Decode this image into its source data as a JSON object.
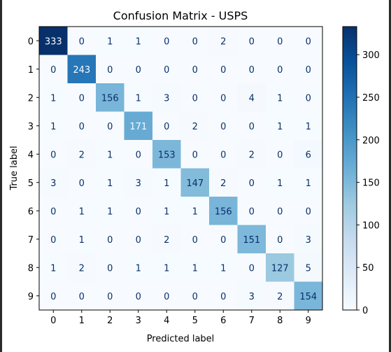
{
  "chart_data": {
    "type": "heatmap",
    "title": "Confusion Matrix - USPS",
    "xlabel": "Predicted label",
    "ylabel": "True label",
    "x_categories": [
      "0",
      "1",
      "2",
      "3",
      "4",
      "5",
      "6",
      "7",
      "8",
      "9"
    ],
    "y_categories": [
      "0",
      "1",
      "2",
      "3",
      "4",
      "5",
      "6",
      "7",
      "8",
      "9"
    ],
    "matrix": [
      [
        333,
        0,
        1,
        1,
        0,
        0,
        2,
        0,
        0,
        0
      ],
      [
        0,
        243,
        0,
        0,
        0,
        0,
        0,
        0,
        0,
        0
      ],
      [
        1,
        0,
        156,
        1,
        3,
        0,
        0,
        4,
        1,
        0
      ],
      [
        1,
        0,
        0,
        171,
        0,
        2,
        0,
        0,
        1,
        1
      ],
      [
        0,
        2,
        1,
        0,
        153,
        0,
        0,
        2,
        0,
        6
      ],
      [
        3,
        0,
        1,
        3,
        1,
        147,
        2,
        0,
        1,
        1
      ],
      [
        0,
        1,
        1,
        0,
        1,
        1,
        156,
        0,
        0,
        0
      ],
      [
        0,
        1,
        0,
        0,
        2,
        0,
        0,
        151,
        0,
        3
      ],
      [
        1,
        2,
        0,
        1,
        1,
        1,
        1,
        0,
        127,
        5
      ],
      [
        0,
        0,
        0,
        0,
        0,
        0,
        0,
        3,
        2,
        154
      ]
    ],
    "colormap": "Blues",
    "vmin": 0,
    "vmax": 333,
    "colorbar_ticks": [
      0,
      50,
      100,
      150,
      200,
      250,
      300
    ]
  }
}
